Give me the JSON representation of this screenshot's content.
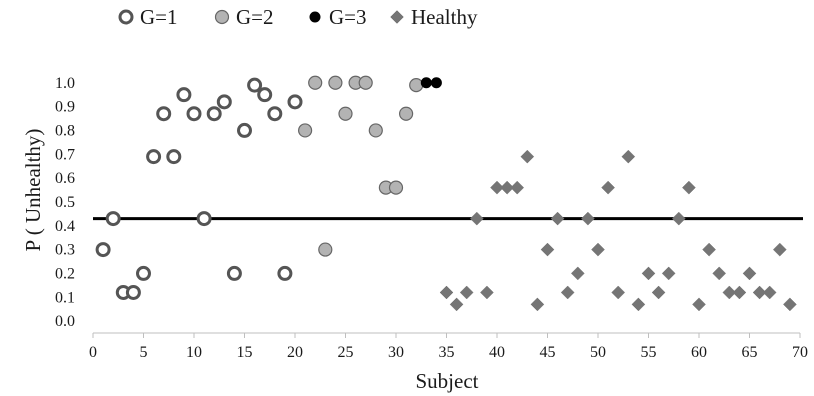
{
  "chart_data": {
    "type": "scatter",
    "xlabel": "Subject",
    "ylabel": "P ( Unhealthy)",
    "xlim": [
      0,
      70
    ],
    "ylim": [
      -0.05,
      1.15
    ],
    "xticks": [
      0,
      5,
      10,
      15,
      20,
      25,
      30,
      35,
      40,
      45,
      50,
      55,
      60,
      65,
      70
    ],
    "xtick_labels": [
      "0",
      "5",
      "10",
      "15",
      "20",
      "25",
      "30",
      "35",
      "40",
      "45",
      "50",
      "55",
      "60",
      "65",
      "70"
    ],
    "yticks": [
      0.0,
      0.1,
      0.2,
      0.3,
      0.4,
      0.5,
      0.6,
      0.7,
      0.8,
      0.9,
      1.0
    ],
    "ytick_labels": [
      "0.0",
      "0.1",
      "0.2",
      "0.3",
      "0.4",
      "0.5",
      "0.6",
      "0.7",
      "0.8",
      "0.9",
      "1.0"
    ],
    "grid": false,
    "legend_position": "top",
    "threshold": 0.43,
    "threshold_color": "#000000",
    "series": [
      {
        "name": "G=1",
        "marker": "open-circle",
        "color": "#555555",
        "fill": "#ffffff",
        "points": [
          [
            1,
            0.3
          ],
          [
            2,
            0.43
          ],
          [
            3,
            0.12
          ],
          [
            4,
            0.12
          ],
          [
            5,
            0.2
          ],
          [
            6,
            0.69
          ],
          [
            7,
            0.87
          ],
          [
            8,
            0.69
          ],
          [
            9,
            0.95
          ],
          [
            10,
            0.87
          ],
          [
            11,
            0.43
          ],
          [
            12,
            0.87
          ],
          [
            13,
            0.92
          ],
          [
            14,
            0.2
          ],
          [
            15,
            0.8
          ],
          [
            16,
            0.99
          ],
          [
            17,
            0.95
          ],
          [
            18,
            0.87
          ],
          [
            19,
            0.2
          ],
          [
            20,
            0.92
          ]
        ]
      },
      {
        "name": "G=2",
        "marker": "gray-circle",
        "color": "#666666",
        "fill": "#b3b3b3",
        "points": [
          [
            21,
            0.8
          ],
          [
            22,
            1.0
          ],
          [
            23,
            0.3
          ],
          [
            24,
            1.0
          ],
          [
            25,
            0.87
          ],
          [
            26,
            1.0
          ],
          [
            27,
            1.0
          ],
          [
            28,
            0.8
          ],
          [
            29,
            0.56
          ],
          [
            30,
            0.56
          ],
          [
            31,
            0.87
          ],
          [
            32,
            0.99
          ]
        ]
      },
      {
        "name": "G=3",
        "marker": "black-dot",
        "color": "#000000",
        "fill": "#000000",
        "points": [
          [
            33,
            1.0
          ],
          [
            34,
            1.0
          ]
        ]
      },
      {
        "name": "Healthy",
        "marker": "diamond",
        "color": "#757575",
        "fill": "#757575",
        "points": [
          [
            35,
            0.12
          ],
          [
            36,
            0.07
          ],
          [
            37,
            0.12
          ],
          [
            38,
            0.43
          ],
          [
            39,
            0.12
          ],
          [
            40,
            0.56
          ],
          [
            41,
            0.56
          ],
          [
            42,
            0.56
          ],
          [
            43,
            0.69
          ],
          [
            44,
            0.07
          ],
          [
            45,
            0.3
          ],
          [
            46,
            0.43
          ],
          [
            47,
            0.12
          ],
          [
            48,
            0.2
          ],
          [
            49,
            0.43
          ],
          [
            50,
            0.3
          ],
          [
            51,
            0.56
          ],
          [
            52,
            0.12
          ],
          [
            53,
            0.69
          ],
          [
            54,
            0.07
          ],
          [
            55,
            0.2
          ],
          [
            56,
            0.12
          ],
          [
            57,
            0.2
          ],
          [
            58,
            0.43
          ],
          [
            59,
            0.56
          ],
          [
            60,
            0.07
          ],
          [
            61,
            0.3
          ],
          [
            62,
            0.2
          ],
          [
            63,
            0.12
          ],
          [
            64,
            0.12
          ],
          [
            65,
            0.2
          ],
          [
            66,
            0.12
          ],
          [
            67,
            0.12
          ],
          [
            68,
            0.3
          ],
          [
            69,
            0.07
          ]
        ]
      }
    ]
  }
}
